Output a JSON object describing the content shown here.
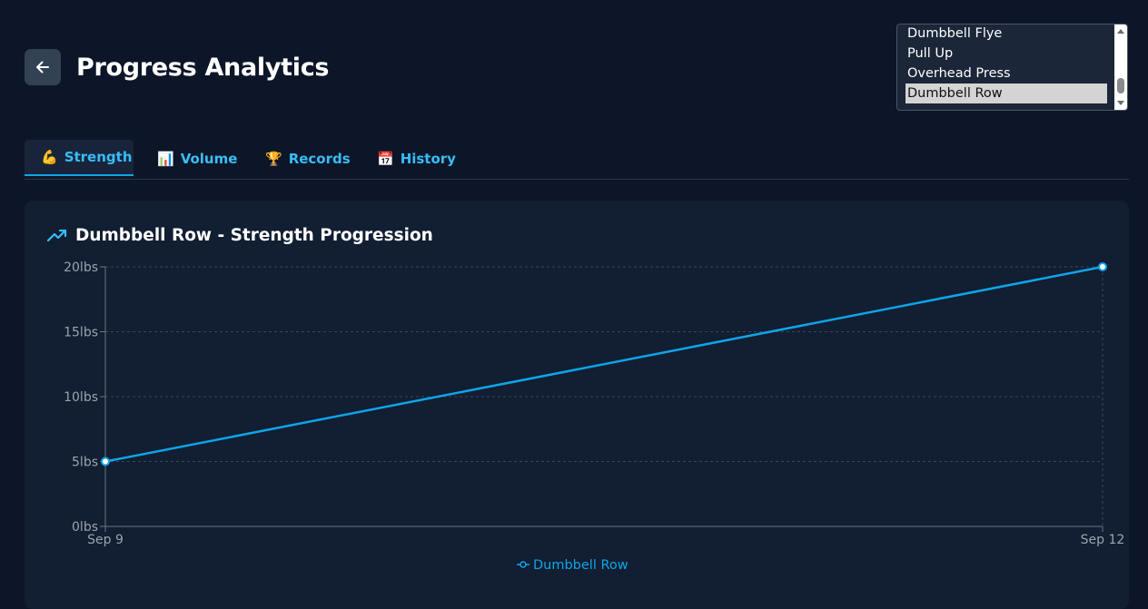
{
  "header": {
    "title": "Progress Analytics"
  },
  "exercise_select": {
    "options": [
      "Dumbbell Flye",
      "Pull Up",
      "Overhead Press",
      "Dumbbell Row"
    ],
    "selected": "Dumbbell Row"
  },
  "tabs": [
    {
      "label": "Strength",
      "emoji": "💪",
      "active": true
    },
    {
      "label": "Volume",
      "emoji": "📊",
      "active": false
    },
    {
      "label": "Records",
      "emoji": "🏆",
      "active": false
    },
    {
      "label": "History",
      "emoji": "📅",
      "active": false
    }
  ],
  "colors": {
    "accent": "#0ea5e9",
    "background": "#0d1628",
    "card": "#121e32"
  },
  "chart_data": {
    "type": "line",
    "title": "Dumbbell Row - Strength Progression",
    "x": [
      "Sep 9",
      "Sep 12"
    ],
    "series": [
      {
        "name": "Dumbbell Row",
        "values": [
          5,
          20
        ],
        "color": "#0ea5e9"
      }
    ],
    "yticks": [
      "0lbs",
      "5lbs",
      "10lbs",
      "15lbs",
      "20lbs"
    ],
    "ylim": [
      0,
      20
    ],
    "grid": true,
    "legend": "bottom"
  }
}
